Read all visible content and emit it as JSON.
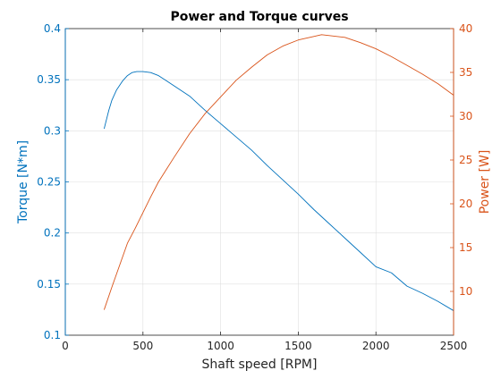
{
  "chart_data": {
    "type": "line",
    "title": "Power and Torque curves",
    "xlabel": "Shaft speed [RPM]",
    "xlim": [
      0,
      2500
    ],
    "xticks": [
      0,
      500,
      1000,
      1500,
      2000,
      2500
    ],
    "xtick_labels": [
      "0",
      "500",
      "1000",
      "1500",
      "2000",
      "2500"
    ],
    "grid": true,
    "axes": {
      "left": {
        "label": "Torque [N*m]",
        "color": "#0072BD",
        "ylim": [
          0.1,
          0.4
        ],
        "ticks": [
          0.1,
          0.15,
          0.2,
          0.25,
          0.3,
          0.35,
          0.4
        ],
        "tick_labels": [
          "0.1",
          "0.15",
          "0.2",
          "0.25",
          "0.3",
          "0.35",
          "0.4"
        ]
      },
      "right": {
        "label": "Power [W]",
        "color": "#D95319",
        "ylim": [
          5,
          40
        ],
        "ticks": [
          10,
          15,
          20,
          25,
          30,
          35,
          40
        ],
        "tick_labels": [
          "10",
          "15",
          "20",
          "25",
          "30",
          "35",
          "40"
        ]
      }
    },
    "series": [
      {
        "axis": "left",
        "color": "#0072BD",
        "x": [
          250,
          280,
          300,
          330,
          370,
          400,
          430,
          460,
          500,
          550,
          600,
          650,
          700,
          800,
          900,
          1000,
          1100,
          1200,
          1300,
          1400,
          1500,
          1600,
          1700,
          1800,
          1900,
          2000,
          2100,
          2200,
          2300,
          2400,
          2500
        ],
        "y": [
          0.302,
          0.32,
          0.33,
          0.34,
          0.349,
          0.354,
          0.357,
          0.358,
          0.358,
          0.357,
          0.354,
          0.349,
          0.344,
          0.334,
          0.32,
          0.307,
          0.294,
          0.281,
          0.266,
          0.252,
          0.238,
          0.223,
          0.209,
          0.195,
          0.181,
          0.167,
          0.161,
          0.148,
          0.141,
          0.133,
          0.124
        ]
      },
      {
        "axis": "right",
        "color": "#D95319",
        "x": [
          250,
          300,
          350,
          400,
          450,
          500,
          550,
          600,
          650,
          700,
          800,
          900,
          1000,
          1100,
          1200,
          1300,
          1400,
          1500,
          1600,
          1650,
          1700,
          1800,
          1900,
          2000,
          2100,
          2200,
          2300,
          2400,
          2500
        ],
        "y": [
          7.9,
          10.5,
          13,
          15.5,
          17.2,
          19,
          20.8,
          22.5,
          23.9,
          25.3,
          28,
          30.3,
          32.2,
          34.1,
          35.6,
          37,
          38,
          38.7,
          39.1,
          39.3,
          39.2,
          39,
          38.4,
          37.7,
          36.8,
          35.8,
          34.8,
          33.7,
          32.4
        ]
      }
    ]
  }
}
